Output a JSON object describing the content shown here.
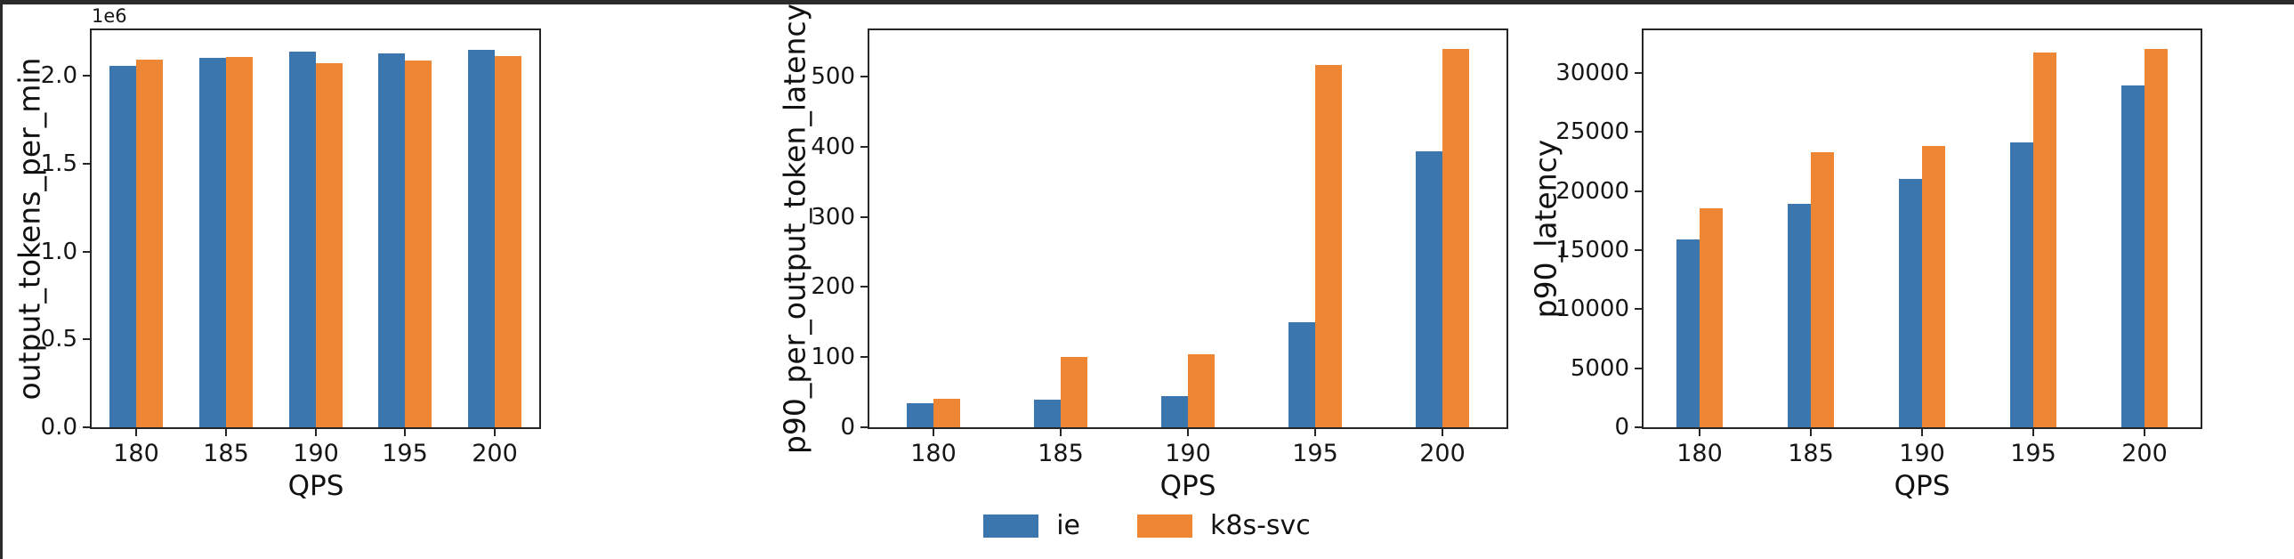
{
  "figure": {
    "background_color": "#ffffff",
    "top_border_color": "#2b2b2b",
    "left_border_color": "#2b2b2b"
  },
  "colors": {
    "series": [
      "#3c76af",
      "#ee8634"
    ]
  },
  "legend": {
    "position": "bottom-center",
    "items": [
      {
        "label": "ie",
        "color": "#3c76af"
      },
      {
        "label": "k8s-svc",
        "color": "#ee8634"
      }
    ]
  },
  "chart_data": [
    {
      "type": "bar",
      "title": "",
      "xlabel": "QPS",
      "ylabel": "output_tokens_per_min",
      "offset_label": "1e6",
      "grid": false,
      "categories": [
        "180",
        "185",
        "190",
        "195",
        "200"
      ],
      "series": [
        {
          "name": "ie",
          "values": [
            2056000,
            2101000,
            2138000,
            2130000,
            2146000
          ]
        },
        {
          "name": "k8s-svc",
          "values": [
            2091000,
            2106000,
            2074000,
            2089000,
            2111000
          ]
        }
      ],
      "ylim": [
        0,
        2260000
      ],
      "yticks": [
        {
          "value": 0,
          "label": "0.0"
        },
        {
          "value": 500000,
          "label": "0.5"
        },
        {
          "value": 1000000,
          "label": "1.0"
        },
        {
          "value": 1500000,
          "label": "1.5"
        },
        {
          "value": 2000000,
          "label": "2.0"
        }
      ]
    },
    {
      "type": "bar",
      "title": "",
      "xlabel": "QPS",
      "ylabel": "p90_per_output_token_latency",
      "offset_label": "",
      "grid": false,
      "categories": [
        "180",
        "185",
        "190",
        "195",
        "200"
      ],
      "series": [
        {
          "name": "ie",
          "values": [
            34,
            39,
            45,
            150,
            393
          ]
        },
        {
          "name": "k8s-svc",
          "values": [
            40,
            100,
            104,
            516,
            539
          ]
        }
      ],
      "ylim": [
        0,
        566
      ],
      "yticks": [
        {
          "value": 0,
          "label": "0"
        },
        {
          "value": 100,
          "label": "100"
        },
        {
          "value": 200,
          "label": "200"
        },
        {
          "value": 300,
          "label": "300"
        },
        {
          "value": 400,
          "label": "400"
        },
        {
          "value": 500,
          "label": "500"
        }
      ]
    },
    {
      "type": "bar",
      "title": "",
      "xlabel": "QPS",
      "ylabel": "p90_latency",
      "offset_label": "",
      "grid": false,
      "categories": [
        "180",
        "185",
        "190",
        "195",
        "200"
      ],
      "series": [
        {
          "name": "ie",
          "values": [
            15900,
            18900,
            21000,
            24100,
            28900
          ]
        },
        {
          "name": "k8s-svc",
          "values": [
            18500,
            23300,
            23800,
            31700,
            32000
          ]
        }
      ],
      "ylim": [
        0,
        33600
      ],
      "yticks": [
        {
          "value": 0,
          "label": "0"
        },
        {
          "value": 5000,
          "label": "5000"
        },
        {
          "value": 10000,
          "label": "10000"
        },
        {
          "value": 15000,
          "label": "15000"
        },
        {
          "value": 20000,
          "label": "20000"
        },
        {
          "value": 25000,
          "label": "25000"
        },
        {
          "value": 30000,
          "label": "30000"
        }
      ]
    }
  ]
}
